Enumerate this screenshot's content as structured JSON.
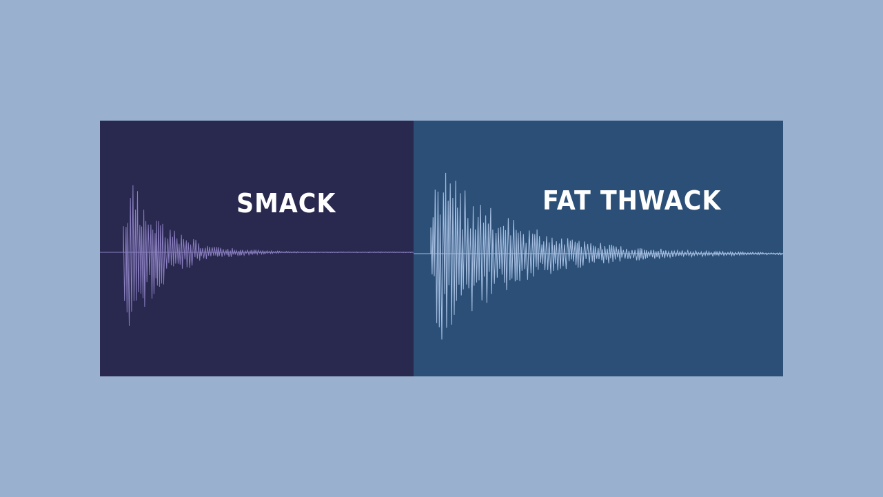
{
  "background_color": "#99b1cf",
  "panels": [
    {
      "name": "smack",
      "label": "SMACK",
      "background_color": "#29284f",
      "waveform_color": "#8a7fc0"
    },
    {
      "name": "fat-thwack",
      "label": "FAT THWACK",
      "background_color": "#2b4f76",
      "waveform_color": "#a4bde0"
    }
  ]
}
